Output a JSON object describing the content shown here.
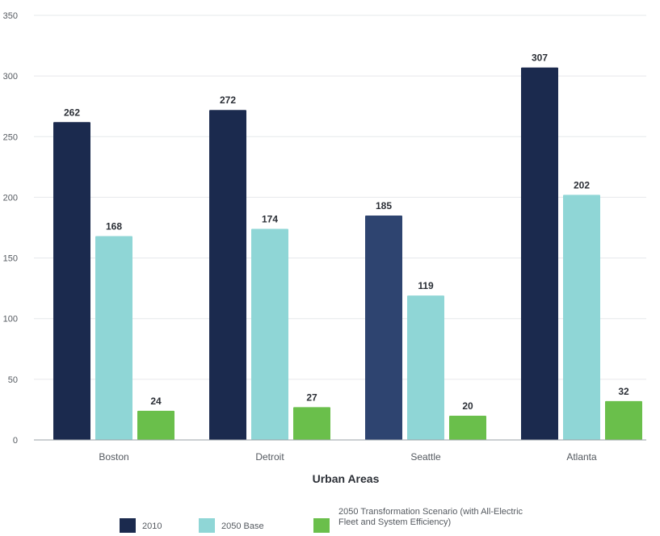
{
  "chart_data": {
    "type": "bar",
    "title": "",
    "xlabel": "Urban Areas",
    "ylabel": "",
    "ylim": [
      0,
      350
    ],
    "yticks": [
      0,
      50,
      100,
      150,
      200,
      250,
      300,
      350
    ],
    "grid": true,
    "legend_position": "bottom",
    "categories": [
      "Boston",
      "Detroit",
      "Seattle",
      "Atlanta"
    ],
    "series": [
      {
        "name": "2010",
        "color": "#1b2a4e",
        "values": [
          262,
          272,
          185,
          307
        ]
      },
      {
        "name": "2050 Base",
        "color": "#8fd6d6",
        "values": [
          168,
          174,
          119,
          202
        ]
      },
      {
        "name": "2050 Transformation Scenario (with All-Electric Fleet and System Efficiency)",
        "legend_lines": [
          "2050 Transformation Scenario (with All-Electric",
          "Fleet and System Efficiency)"
        ],
        "color": "#6abf4b",
        "values": [
          24,
          27,
          20,
          32
        ]
      }
    ],
    "highlight": {
      "series_index": 0,
      "category_index": 2,
      "color": "#2e4470"
    }
  }
}
